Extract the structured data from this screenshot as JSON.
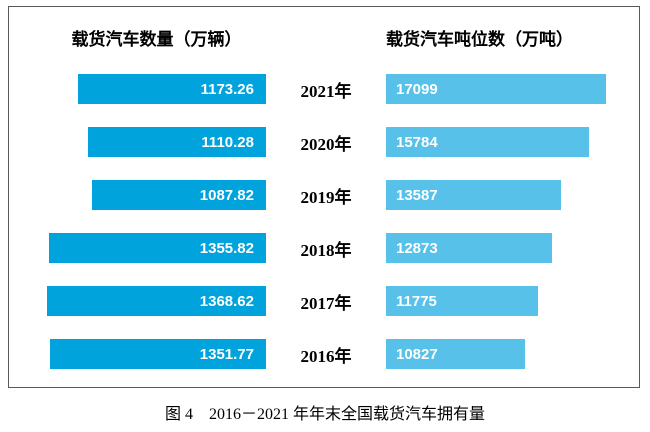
{
  "chart_data": {
    "type": "bar",
    "layout": "tornado",
    "title": "图 4　2016－2021 年年末全国载货汽车拥有量",
    "categories": [
      "2021年",
      "2020年",
      "2019年",
      "2018年",
      "2017年",
      "2016年"
    ],
    "series": [
      {
        "name": "载货汽车数量（万辆）",
        "side": "left",
        "color": "#00A3DC",
        "values": [
          1173.26,
          1110.28,
          1087.82,
          1355.82,
          1368.62,
          1351.77
        ],
        "labels": [
          "1173.26",
          "1110.28",
          "1087.82",
          "1355.82",
          "1368.62",
          "1351.77"
        ]
      },
      {
        "name": "载货汽车吨位数（万吨）",
        "side": "right",
        "color": "#57C1E9",
        "values": [
          17099,
          15784,
          13587,
          12873,
          11775,
          10827
        ],
        "labels": [
          "17099",
          "15784",
          "13587",
          "12873",
          "11775",
          "10827"
        ]
      }
    ],
    "value_labels": "inside",
    "grid": false,
    "legend_position": "top-as-headers"
  },
  "headers": {
    "left": "载货汽车数量（万辆）",
    "right": "载货汽车吨位数（万吨）"
  },
  "caption": "图 4　2016－2021 年年末全国载货汽车拥有量",
  "colors": {
    "left_bar": "#00A3DC",
    "right_bar": "#57C1E9",
    "value_text": "#FFFFFF",
    "frame_border": "#595959"
  }
}
